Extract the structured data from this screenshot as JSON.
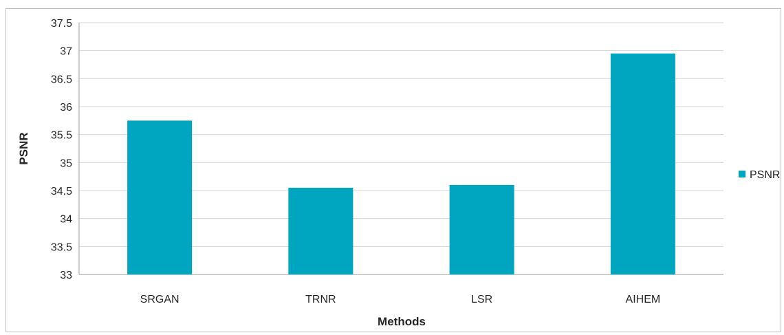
{
  "chart_data": {
    "type": "bar",
    "categories": [
      "SRGAN",
      "TRNR",
      "LSR",
      "AIHEM"
    ],
    "series": [
      {
        "name": "PSNR",
        "values": [
          35.75,
          34.55,
          34.6,
          36.95
        ],
        "color": "#00A5C0"
      }
    ],
    "title": "",
    "xlabel": "Methods",
    "ylabel": "PSNR",
    "ylim": [
      33,
      37.5
    ],
    "yticks": [
      "33",
      "33.5",
      "34",
      "34.5",
      "35",
      "35.5",
      "36",
      "36.5",
      "37",
      "37.5"
    ],
    "grid": true,
    "legend_position": "right"
  }
}
